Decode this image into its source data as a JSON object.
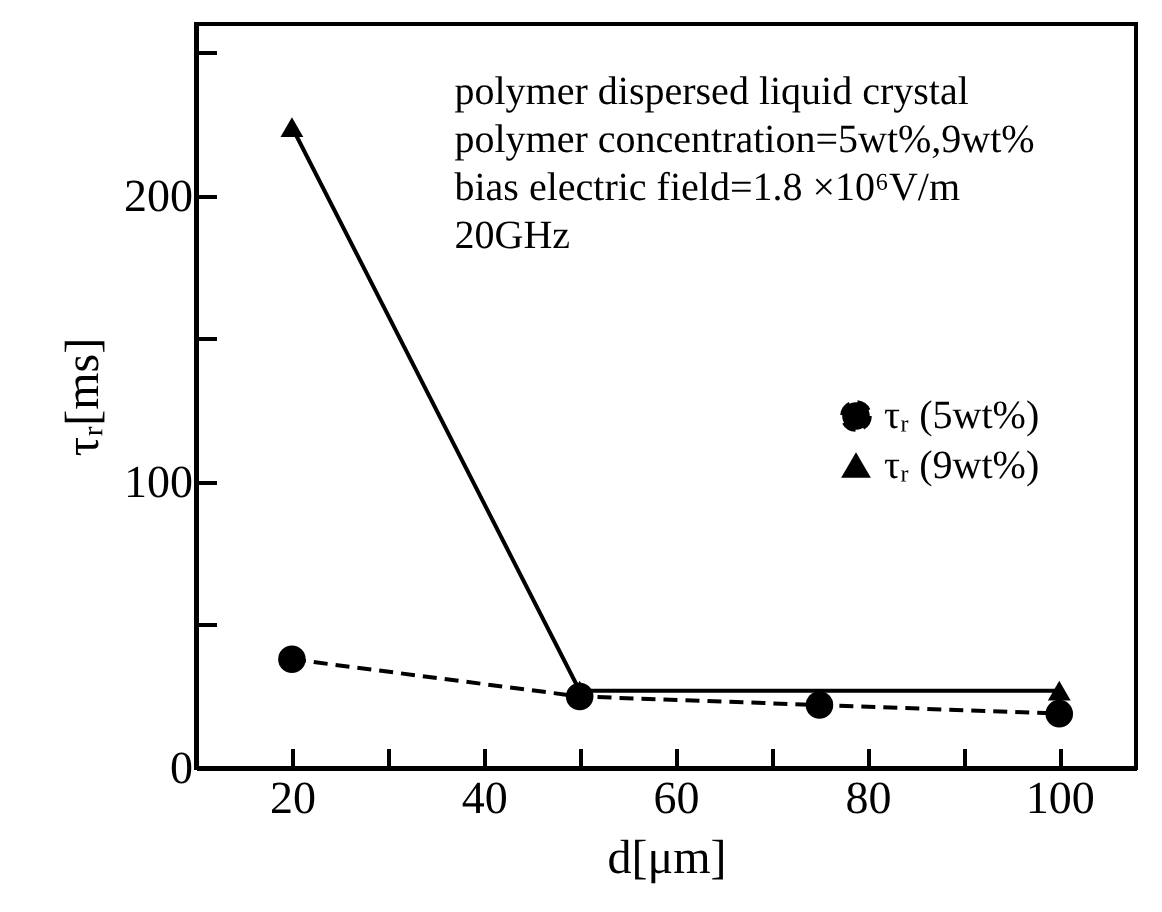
{
  "chart_data": {
    "type": "line",
    "xlabel": "d[μm]",
    "ylabel": "τᵣ[ms]",
    "annotations": [
      "polymer dispersed liquid crystal",
      "polymer concentration=5wt%,9wt%",
      "bias electric field=1.8 ×10⁶V/m",
      "20GHz"
    ],
    "series": [
      {
        "name": "τᵣ (5wt%)",
        "color": "#000000",
        "marker": "circle",
        "line_style": "dashed",
        "x": [
          20,
          50,
          75,
          100
        ],
        "values": [
          38,
          25,
          22,
          19
        ]
      },
      {
        "name": "τᵣ (9wt%)",
        "color": "#000000",
        "marker": "triangle",
        "line_style": "solid",
        "x": [
          20,
          50,
          100
        ],
        "values": [
          224,
          27,
          27
        ]
      }
    ],
    "xlim": [
      10,
      108
    ],
    "xticks": [
      20,
      {
        "value": 30,
        "label": null
      },
      40,
      {
        "value": 50,
        "label": null
      },
      60,
      {
        "value": 70,
        "label": null
      },
      80,
      {
        "value": 90,
        "label": null
      },
      100
    ],
    "ylim": [
      0,
      260
    ],
    "yticks": [
      0,
      {
        "value": 50,
        "label": null
      },
      100,
      {
        "value": 150,
        "label": null
      },
      200,
      {
        "value": 250,
        "label": null
      }
    ],
    "grid": false,
    "legend": "right"
  }
}
